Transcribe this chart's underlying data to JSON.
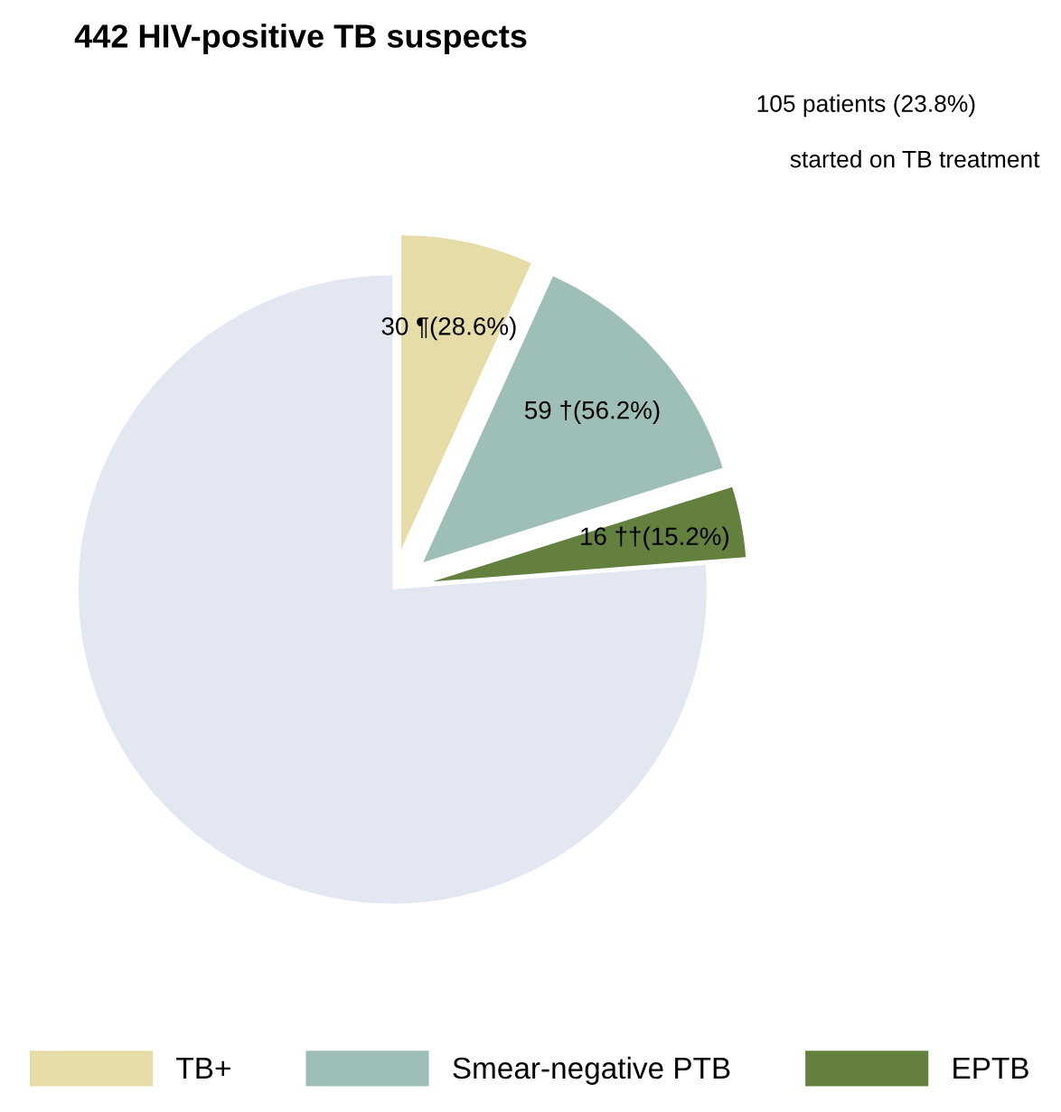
{
  "chart_data": {
    "type": "pie",
    "title": "442 HIV-positive TB suspects",
    "categories": [
      "TB+",
      "Smear-negative PTB",
      "EPTB",
      null
    ],
    "values": [
      30,
      59,
      16,
      337
    ],
    "colors": [
      "#e6dca8",
      "#9dbfb8",
      "#63803f",
      "#e3e7f1"
    ],
    "value_labels": [
      "30 ¶(28.6%)",
      "59 †(56.2%)",
      "16 ††(15.2%)",
      null
    ],
    "annotations": [
      "105 patients (23.8%)",
      "started on TB treatment"
    ],
    "legend": "bottom"
  }
}
